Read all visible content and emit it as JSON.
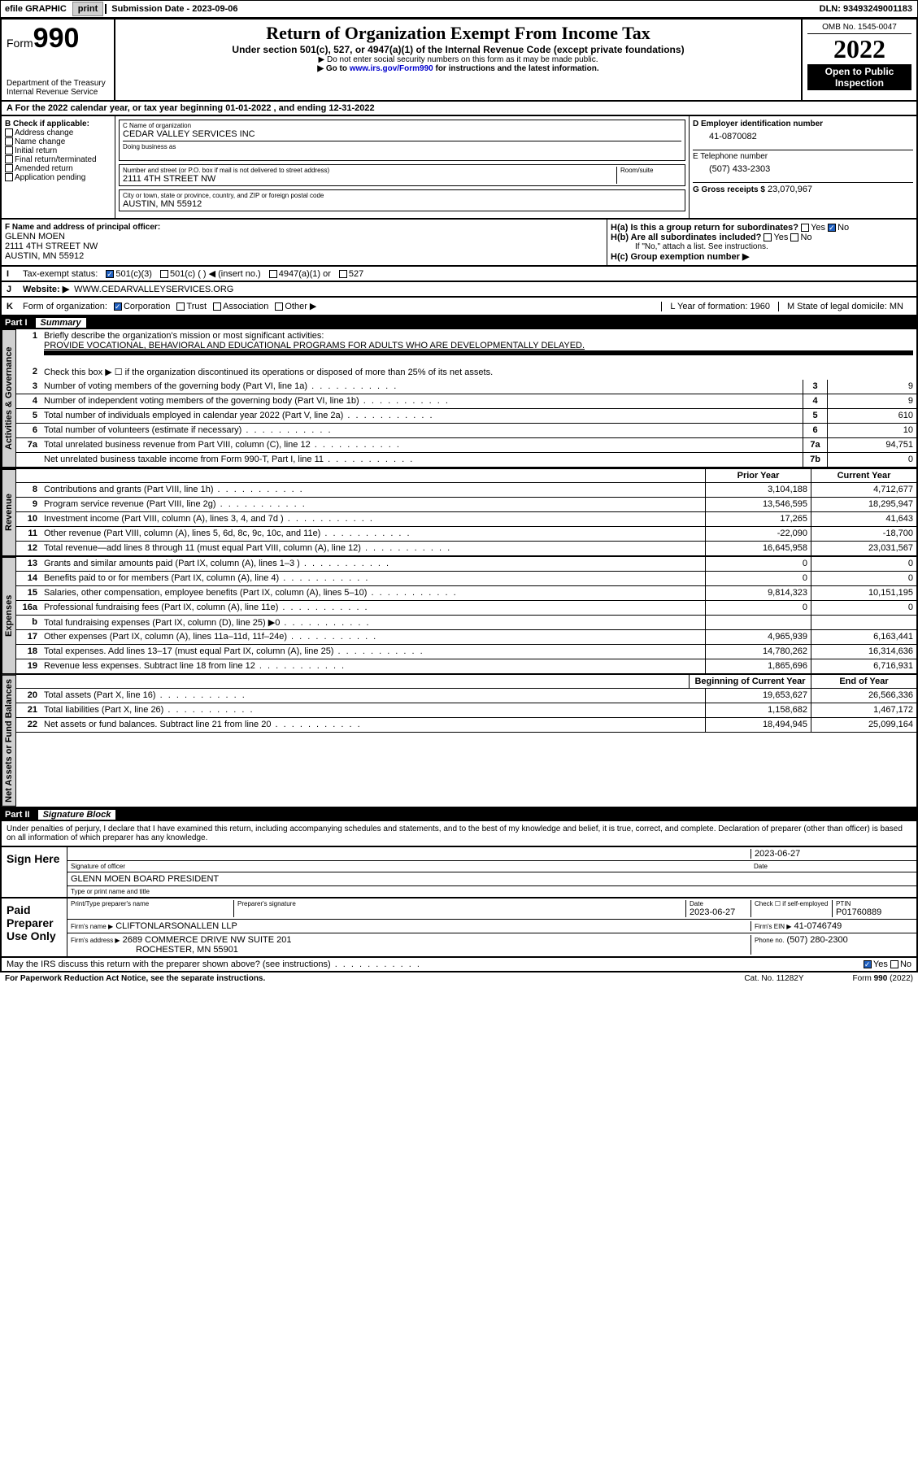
{
  "topbar": {
    "efile": "efile GRAPHIC",
    "print": "print",
    "subdate_label": "Submission Date - 2023-09-06",
    "dln": "DLN: 93493249001183"
  },
  "header": {
    "form_label": "Form",
    "form_num": "990",
    "dept": "Department of the Treasury",
    "irs": "Internal Revenue Service",
    "title": "Return of Organization Exempt From Income Tax",
    "subtitle": "Under section 501(c), 527, or 4947(a)(1) of the Internal Revenue Code (except private foundations)",
    "note1": "▶ Do not enter social security numbers on this form as it may be made public.",
    "note2_pre": "▶ Go to ",
    "note2_link": "www.irs.gov/Form990",
    "note2_post": " for instructions and the latest information.",
    "omb": "OMB No. 1545-0047",
    "year": "2022",
    "open": "Open to Public Inspection"
  },
  "rowA": "A For the 2022 calendar year, or tax year beginning 01-01-2022    , and ending 12-31-2022",
  "blockB": {
    "title": "B Check if applicable:",
    "items": [
      "Address change",
      "Name change",
      "Initial return",
      "Final return/terminated",
      "Amended return",
      "Application pending"
    ]
  },
  "blockC": {
    "name_lbl": "C Name of organization",
    "name": "CEDAR VALLEY SERVICES INC",
    "dba_lbl": "Doing business as",
    "addr_lbl": "Number and street (or P.O. box if mail is not delivered to street address)",
    "room_lbl": "Room/suite",
    "addr": "2111 4TH STREET NW",
    "city_lbl": "City or town, state or province, country, and ZIP or foreign postal code",
    "city": "AUSTIN, MN  55912"
  },
  "blockD": {
    "lbl": "D Employer identification number",
    "val": "41-0870082"
  },
  "blockE": {
    "lbl": "E Telephone number",
    "val": "(507) 433-2303"
  },
  "blockG": {
    "lbl": "G Gross receipts $",
    "val": "23,070,967"
  },
  "blockF": {
    "lbl": "F Name and address of principal officer:",
    "name": "GLENN MOEN",
    "addr1": "2111 4TH STREET NW",
    "addr2": "AUSTIN, MN  55912"
  },
  "blockH": {
    "ha": "H(a)  Is this a group return for subordinates?",
    "hb": "H(b)  Are all subordinates included?",
    "hb_note": "If \"No,\" attach a list. See instructions.",
    "hc": "H(c)  Group exemption number ▶",
    "yes": "Yes",
    "no": "No"
  },
  "rowI": {
    "lbl": "Tax-exempt status:",
    "opts": [
      "501(c)(3)",
      "501(c) (  ) ◀ (insert no.)",
      "4947(a)(1) or",
      "527"
    ],
    "I": "I",
    "J": "J",
    "website_lbl": "Website: ▶",
    "website": "WWW.CEDARVALLEYSERVICES.ORG"
  },
  "rowK": {
    "K": "K",
    "lbl": "Form of organization:",
    "opts": [
      "Corporation",
      "Trust",
      "Association",
      "Other ▶"
    ],
    "L": "L Year of formation: 1960",
    "M": "M State of legal domicile: MN"
  },
  "part1": {
    "num": "Part I",
    "title": "Summary"
  },
  "tabs": {
    "act": "Activities & Governance",
    "rev": "Revenue",
    "exp": "Expenses",
    "net": "Net Assets or Fund Balances"
  },
  "q1": {
    "num": "1",
    "txt": "Briefly describe the organization's mission or most significant activities:",
    "mission": "PROVIDE VOCATIONAL, BEHAVIORAL AND EDUCATIONAL PROGRAMS FOR ADULTS WHO ARE DEVELOPMENTALLY DELAYED."
  },
  "q2": {
    "num": "2",
    "txt": "Check this box ▶ ☐  if the organization discontinued its operations or disposed of more than 25% of its net assets."
  },
  "lines_act": [
    {
      "num": "3",
      "txt": "Number of voting members of the governing body (Part VI, line 1a)",
      "key": "3",
      "val": "9"
    },
    {
      "num": "4",
      "txt": "Number of independent voting members of the governing body (Part VI, line 1b)",
      "key": "4",
      "val": "9"
    },
    {
      "num": "5",
      "txt": "Total number of individuals employed in calendar year 2022 (Part V, line 2a)",
      "key": "5",
      "val": "610"
    },
    {
      "num": "6",
      "txt": "Total number of volunteers (estimate if necessary)",
      "key": "6",
      "val": "10"
    },
    {
      "num": "7a",
      "txt": "Total unrelated business revenue from Part VIII, column (C), line 12",
      "key": "7a",
      "val": "94,751"
    },
    {
      "num": "",
      "txt": "Net unrelated business taxable income from Form 990-T, Part I, line 11",
      "key": "7b",
      "val": "0"
    }
  ],
  "yearhdr": {
    "prior": "Prior Year",
    "curr": "Current Year",
    "beg": "Beginning of Current Year",
    "end": "End of Year"
  },
  "lines_rev": [
    {
      "num": "8",
      "txt": "Contributions and grants (Part VIII, line 1h)",
      "p": "3,104,188",
      "c": "4,712,677"
    },
    {
      "num": "9",
      "txt": "Program service revenue (Part VIII, line 2g)",
      "p": "13,546,595",
      "c": "18,295,947"
    },
    {
      "num": "10",
      "txt": "Investment income (Part VIII, column (A), lines 3, 4, and 7d )",
      "p": "17,265",
      "c": "41,643"
    },
    {
      "num": "11",
      "txt": "Other revenue (Part VIII, column (A), lines 5, 6d, 8c, 9c, 10c, and 11e)",
      "p": "-22,090",
      "c": "-18,700"
    },
    {
      "num": "12",
      "txt": "Total revenue—add lines 8 through 11 (must equal Part VIII, column (A), line 12)",
      "p": "16,645,958",
      "c": "23,031,567"
    }
  ],
  "lines_exp": [
    {
      "num": "13",
      "txt": "Grants and similar amounts paid (Part IX, column (A), lines 1–3 )",
      "p": "0",
      "c": "0"
    },
    {
      "num": "14",
      "txt": "Benefits paid to or for members (Part IX, column (A), line 4)",
      "p": "0",
      "c": "0"
    },
    {
      "num": "15",
      "txt": "Salaries, other compensation, employee benefits (Part IX, column (A), lines 5–10)",
      "p": "9,814,323",
      "c": "10,151,195"
    },
    {
      "num": "16a",
      "txt": "Professional fundraising fees (Part IX, column (A), line 11e)",
      "p": "0",
      "c": "0"
    },
    {
      "num": "b",
      "txt": "Total fundraising expenses (Part IX, column (D), line 25) ▶0",
      "p": "",
      "c": ""
    },
    {
      "num": "17",
      "txt": "Other expenses (Part IX, column (A), lines 11a–11d, 11f–24e)",
      "p": "4,965,939",
      "c": "6,163,441"
    },
    {
      "num": "18",
      "txt": "Total expenses. Add lines 13–17 (must equal Part IX, column (A), line 25)",
      "p": "14,780,262",
      "c": "16,314,636"
    },
    {
      "num": "19",
      "txt": "Revenue less expenses. Subtract line 18 from line 12",
      "p": "1,865,696",
      "c": "6,716,931"
    }
  ],
  "lines_net": [
    {
      "num": "20",
      "txt": "Total assets (Part X, line 16)",
      "p": "19,653,627",
      "c": "26,566,336"
    },
    {
      "num": "21",
      "txt": "Total liabilities (Part X, line 26)",
      "p": "1,158,682",
      "c": "1,467,172"
    },
    {
      "num": "22",
      "txt": "Net assets or fund balances. Subtract line 21 from line 20",
      "p": "18,494,945",
      "c": "25,099,164"
    }
  ],
  "part2": {
    "num": "Part II",
    "title": "Signature Block"
  },
  "penalty": "Under penalties of perjury, I declare that I have examined this return, including accompanying schedules and statements, and to the best of my knowledge and belief, it is true, correct, and complete. Declaration of preparer (other than officer) is based on all information of which preparer has any knowledge.",
  "sign": {
    "here": "Sign Here",
    "sig_officer": "Signature of officer",
    "date": "Date",
    "date_val": "2023-06-27",
    "name": "GLENN MOEN  BOARD PRESIDENT",
    "name_lbl": "Type or print name and title"
  },
  "paid": {
    "title": "Paid Preparer Use Only",
    "print_lbl": "Print/Type preparer's name",
    "sig_lbl": "Preparer's signature",
    "date_lbl": "Date",
    "date_val": "2023-06-27",
    "check_lbl": "Check ☐ if self-employed",
    "ptin_lbl": "PTIN",
    "ptin": "P01760889",
    "firm_name_lbl": "Firm's name   ▶",
    "firm_name": "CLIFTONLARSONALLEN LLP",
    "firm_ein_lbl": "Firm's EIN ▶",
    "firm_ein": "41-0746749",
    "firm_addr_lbl": "Firm's address ▶",
    "firm_addr1": "2689 COMMERCE DRIVE NW SUITE 201",
    "firm_addr2": "ROCHESTER, MN  55901",
    "phone_lbl": "Phone no.",
    "phone": "(507) 280-2300"
  },
  "discuss": {
    "txt": "May the IRS discuss this return with the preparer shown above? (see instructions)",
    "yes": "Yes",
    "no": "No"
  },
  "footer": {
    "left": "For Paperwork Reduction Act Notice, see the separate instructions.",
    "mid": "Cat. No. 11282Y",
    "right": "Form 990 (2022)"
  }
}
